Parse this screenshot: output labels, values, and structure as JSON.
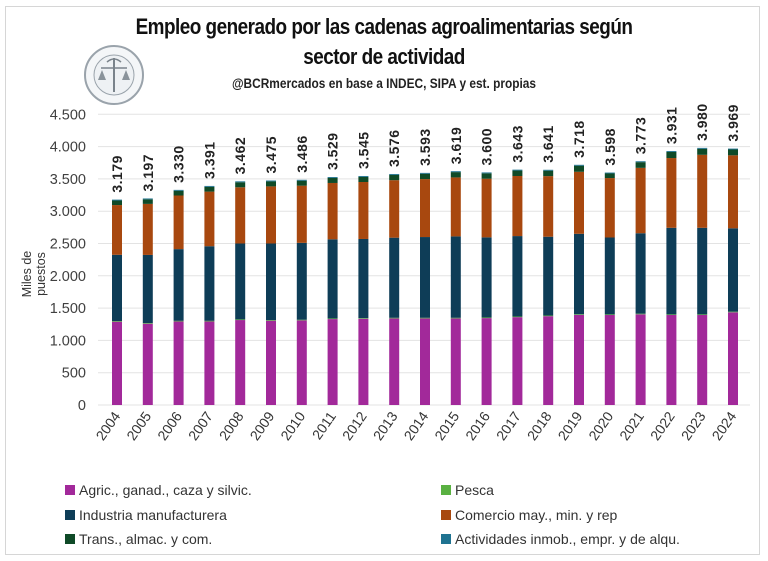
{
  "chart_data": {
    "type": "bar",
    "stacked": true,
    "title": "Empleo generado por las cadenas agroalimentarias según sector de actividad",
    "title_lines": [
      "Empleo generado por las cadenas agroalimentarias según",
      "sector de actividad"
    ],
    "subtitle": "@BCRmercados en base a INDEC, SIPA y est. propias",
    "xlabel": "",
    "ylabel": "Miles de puestos",
    "ylim": [
      0,
      4500
    ],
    "yticks": [
      0,
      500,
      1000,
      1500,
      2000,
      2500,
      3000,
      3500,
      4000,
      4500
    ],
    "ytick_labels": [
      "0",
      "500",
      "1.000",
      "1.500",
      "2.000",
      "2.500",
      "3.000",
      "3.500",
      "4.000",
      "4.500"
    ],
    "grid": true,
    "legend_position": "bottom",
    "categories": [
      "2004",
      "2005",
      "2006",
      "2007",
      "2008",
      "2009",
      "2010",
      "2011",
      "2012",
      "2013",
      "2014",
      "2015",
      "2016",
      "2017",
      "2018",
      "2019",
      "2020",
      "2021",
      "2022",
      "2023",
      "2024"
    ],
    "totals": [
      3179,
      3197,
      3330,
      3391,
      3462,
      3475,
      3486,
      3529,
      3545,
      3576,
      3593,
      3619,
      3600,
      3643,
      3641,
      3718,
      3598,
      3773,
      3931,
      3980,
      3969
    ],
    "total_labels": [
      "3.179",
      "3.197",
      "3.330",
      "3.391",
      "3.462",
      "3.475",
      "3.486",
      "3.529",
      "3.545",
      "3.576",
      "3.593",
      "3.619",
      "3.600",
      "3.643",
      "3.641",
      "3.718",
      "3.598",
      "3.773",
      "3.931",
      "3.980",
      "3.969"
    ],
    "series": [
      {
        "name": "Agric., ganad., caza y silvic.",
        "color": "#a2299a",
        "values": [
          1290,
          1258,
          1293,
          1293,
          1315,
          1305,
          1310,
          1330,
          1335,
          1340,
          1340,
          1340,
          1345,
          1360,
          1375,
          1395,
          1393,
          1404,
          1393,
          1393,
          1435
        ]
      },
      {
        "name": "Pesca",
        "color": "#5ab142",
        "values": [
          10,
          10,
          10,
          10,
          10,
          10,
          10,
          10,
          10,
          10,
          10,
          10,
          10,
          10,
          10,
          10,
          10,
          10,
          10,
          10,
          10
        ]
      },
      {
        "name": "Industria manufacturera",
        "color": "#0e3d57",
        "values": [
          1025,
          1055,
          1110,
          1155,
          1175,
          1185,
          1190,
          1225,
          1225,
          1240,
          1250,
          1260,
          1240,
          1245,
          1220,
          1245,
          1190,
          1245,
          1340,
          1340,
          1290
        ]
      },
      {
        "name": "Comercio may., min. y rep",
        "color": "#a8480f",
        "values": [
          770,
          790,
          830,
          845,
          870,
          884,
          885,
          872,
          882,
          890,
          897,
          913,
          908,
          930,
          938,
          960,
          920,
          1012,
          1080,
          1130,
          1130
        ]
      },
      {
        "name": "Trans., almac. y com.",
        "color": "#0f4a27",
        "values": [
          70,
          70,
          73,
          74,
          78,
          77,
          77,
          78,
          79,
          82,
          82,
          82,
          83,
          84,
          84,
          94,
          71,
          88,
          94,
          93,
          90
        ]
      },
      {
        "name": "Actividades inmob., empr. y de alqu.",
        "color": "#1f7391",
        "values": [
          14,
          14,
          14,
          14,
          14,
          14,
          14,
          14,
          14,
          14,
          14,
          14,
          14,
          14,
          14,
          14,
          14,
          14,
          14,
          14,
          14
        ]
      }
    ]
  },
  "logo": {
    "name": "Bolsa de Comercio de Rosario seal"
  }
}
